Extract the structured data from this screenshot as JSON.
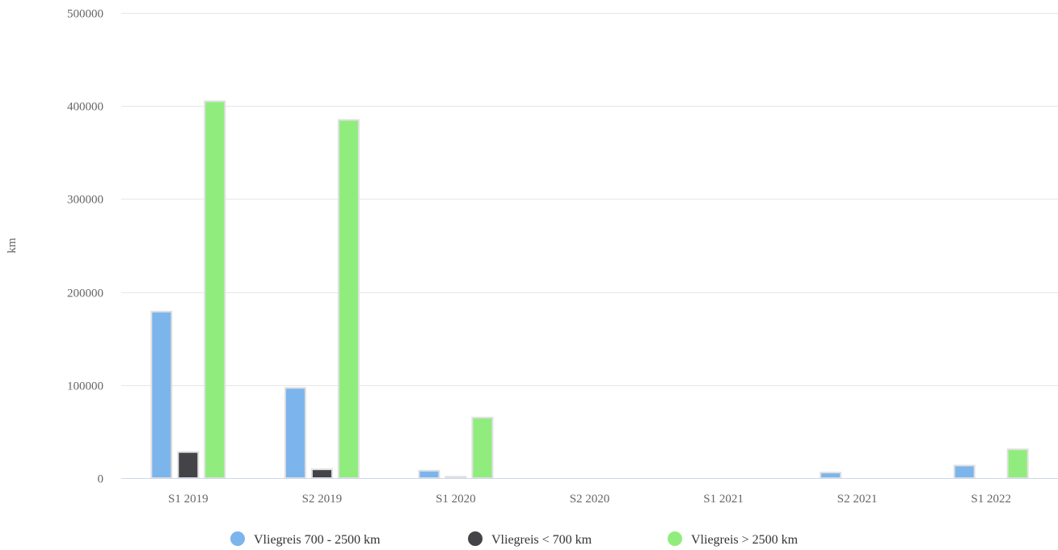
{
  "chart_data": {
    "type": "bar",
    "categories": [
      "S1 2019",
      "S2 2019",
      "S1 2020",
      "S2 2020",
      "S1 2021",
      "S2 2021",
      "S1 2022"
    ],
    "series": [
      {
        "name": "Vliegreis 700 - 2500 km",
        "color": "#7cb5ec",
        "values": [
          179000,
          97000,
          8000,
          0,
          0,
          6000,
          13500
        ]
      },
      {
        "name": "Vliegreis < 700 km",
        "color": "#434348",
        "values": [
          28000,
          9500,
          1500,
          0,
          0,
          0,
          0
        ]
      },
      {
        "name": "Vliegreis > 2500 km",
        "color": "#90ed7d",
        "values": [
          405000,
          385000,
          65000,
          0,
          0,
          0,
          31000
        ]
      }
    ],
    "title": "",
    "xlabel": "",
    "ylabel": "km",
    "ylim": [
      0,
      500000
    ],
    "yticks": [
      0,
      100000,
      200000,
      300000,
      400000,
      500000
    ],
    "ytick_labels": [
      "0",
      "100000",
      "200000",
      "300000",
      "400000",
      "500000"
    ],
    "grid": true,
    "legend_position": "bottom-center"
  }
}
